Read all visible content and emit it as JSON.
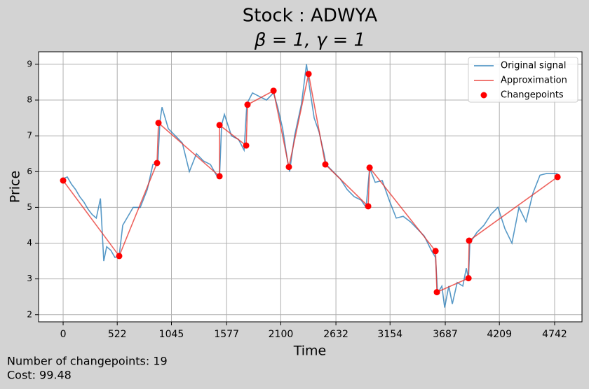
{
  "chart_data": {
    "type": "line",
    "title": "Stock : ADWYA",
    "subtitle": "β = 1, γ = 1",
    "x_label": "Time",
    "y_label": "Price",
    "annotations": [
      "Number of changepoints: 19",
      "Cost: 99.48"
    ],
    "xlim": [
      -237,
      5006
    ],
    "ylim": [
      1.8,
      9.35
    ],
    "xticks": [
      0,
      522,
      1045,
      1577,
      2100,
      2632,
      3154,
      3687,
      4209,
      4742
    ],
    "yticks": [
      2,
      3,
      4,
      5,
      6,
      7,
      8,
      9
    ],
    "grid": true,
    "legend": "upper right",
    "series": [
      {
        "name": "Original signal",
        "color": "#1f77b4",
        "mark": "line",
        "x": [
          0,
          40,
          80,
          120,
          160,
          200,
          240,
          280,
          320,
          360,
          392,
          420,
          460,
          500,
          541,
          575,
          676,
          744,
          812,
          866,
          913,
          934,
          954,
          1015,
          1083,
          1150,
          1218,
          1286,
          1353,
          1421,
          1489,
          1509,
          1529,
          1556,
          1624,
          1692,
          1746,
          1773,
          1827,
          1894,
          1962,
          2030,
          2070,
          2118,
          2165,
          2185,
          2233,
          2300,
          2348,
          2375,
          2422,
          2470,
          2517,
          2537,
          2605,
          2673,
          2740,
          2808,
          2876,
          2923,
          2957,
          3011,
          3079,
          3146,
          3214,
          3281,
          3349,
          3417,
          3484,
          3552,
          3593,
          3613,
          3654,
          3681,
          3721,
          3755,
          3802,
          3856,
          3890,
          3911,
          3924,
          3992,
          4060,
          4127,
          4195,
          4263,
          4330,
          4398,
          4466,
          4533,
          4601,
          4669,
          4770
        ],
        "values": [
          5.8,
          5.85,
          5.65,
          5.5,
          5.3,
          5.15,
          4.95,
          4.8,
          4.7,
          5.25,
          3.5,
          3.9,
          3.8,
          3.6,
          3.65,
          4.5,
          5.0,
          5.0,
          5.5,
          6.2,
          6.2,
          7.4,
          7.8,
          7.2,
          7.0,
          6.8,
          6.0,
          6.5,
          6.3,
          6.2,
          5.85,
          5.85,
          7.3,
          7.6,
          7.0,
          6.9,
          6.6,
          7.9,
          8.2,
          8.1,
          8.0,
          8.2,
          7.8,
          7.2,
          6.3,
          6.0,
          7.0,
          7.9,
          9.0,
          8.4,
          7.5,
          7.1,
          6.5,
          6.2,
          6.0,
          5.8,
          5.5,
          5.3,
          5.2,
          5.0,
          6.1,
          5.7,
          5.75,
          5.2,
          4.7,
          4.75,
          4.6,
          4.4,
          4.2,
          3.8,
          3.6,
          2.6,
          2.8,
          2.2,
          2.8,
          2.3,
          2.9,
          2.8,
          3.3,
          3.0,
          4.0,
          4.3,
          4.5,
          4.8,
          5.0,
          4.4,
          4.0,
          5.0,
          4.6,
          5.4,
          5.9,
          5.95,
          5.95
        ]
      },
      {
        "name": "Approximation",
        "color": "#e8302a",
        "mark": "line",
        "x": [
          0,
          541,
          906,
          920,
          1509,
          1509,
          1766,
          1779,
          2030,
          2178,
          2368,
          2530,
          2943,
          2957,
          3593,
          3606,
          3911,
          3917,
          4770
        ],
        "values": [
          5.75,
          3.64,
          6.24,
          7.36,
          5.87,
          7.3,
          6.73,
          7.87,
          8.26,
          6.13,
          8.73,
          6.2,
          5.03,
          6.11,
          3.78,
          2.63,
          3.02,
          4.07,
          5.85
        ]
      },
      {
        "name": "Changepoints",
        "color": "#ff0000",
        "mark": "dot",
        "x": [
          0,
          541,
          906,
          920,
          1509,
          1509,
          1766,
          1779,
          2030,
          2178,
          2368,
          2530,
          2943,
          2957,
          3593,
          3606,
          3911,
          3917,
          4770
        ],
        "values": [
          5.75,
          3.64,
          6.24,
          7.36,
          5.87,
          7.3,
          6.73,
          7.87,
          8.26,
          6.13,
          8.73,
          6.2,
          5.03,
          6.11,
          3.78,
          2.63,
          3.02,
          4.07,
          5.85
        ]
      }
    ]
  }
}
